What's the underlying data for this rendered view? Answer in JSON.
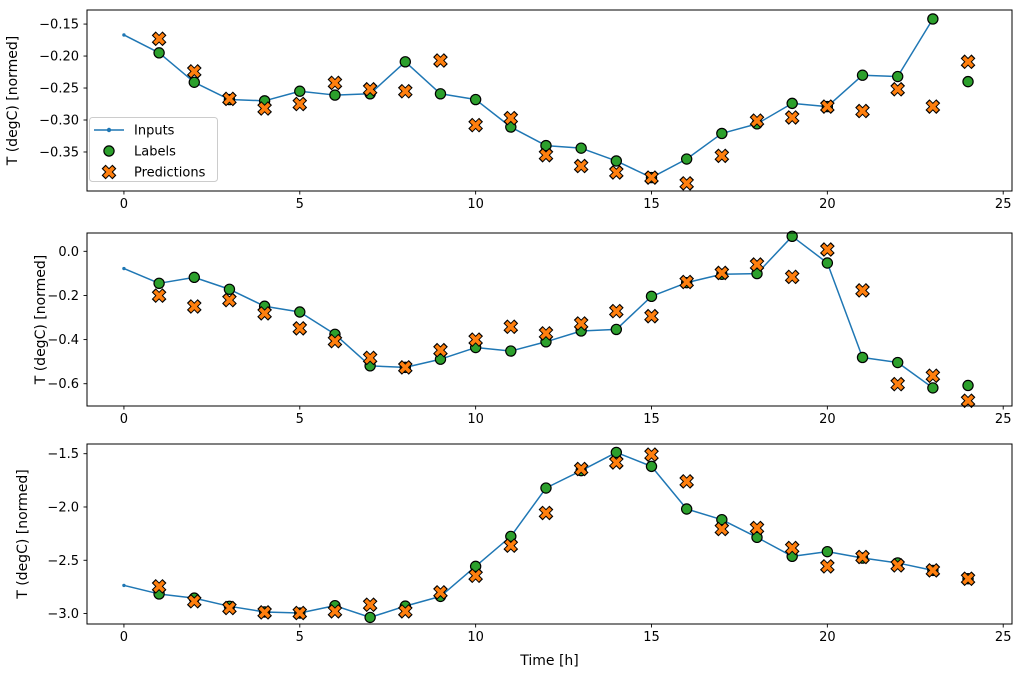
{
  "figure": {
    "xlabel": "Time [h]",
    "xlim": [
      -1.05,
      25.25
    ],
    "xticks": [
      0,
      5,
      10,
      15,
      20,
      25
    ],
    "xtick_labels": [
      "0",
      "5",
      "10",
      "15",
      "20",
      "25"
    ],
    "colors": {
      "inputs": "#1f77b4",
      "labels": "#2ca02c",
      "predictions": "#ff7f0e",
      "marker_edge": "#000000",
      "spine": "#000000",
      "background": "#ffffff",
      "legend_border": "#cccccc"
    },
    "legend": {
      "items": [
        {
          "label": "Inputs",
          "marker": "line-dot"
        },
        {
          "label": "Labels",
          "marker": "circle"
        },
        {
          "label": "Predictions",
          "marker": "X"
        }
      ]
    }
  },
  "chart_data": [
    {
      "type": "line+scatter",
      "ylabel": "T (degC) [normed]",
      "ylim": [
        -0.411,
        -0.128
      ],
      "yticks": [
        -0.15,
        -0.2,
        -0.25,
        -0.3,
        -0.35
      ],
      "ytick_labels": [
        "−0.15",
        "−0.20",
        "−0.25",
        "−0.30",
        "−0.35"
      ],
      "legend": true,
      "series": [
        {
          "name": "Inputs",
          "marker": "line-dot",
          "x": [
            0,
            1,
            2,
            3,
            4,
            5,
            6,
            7,
            8,
            9,
            10,
            11,
            12,
            13,
            14,
            15,
            16,
            17,
            18,
            19,
            20,
            21,
            22,
            23
          ],
          "y": [
            -0.167,
            -0.195,
            -0.241,
            -0.268,
            -0.27,
            -0.255,
            -0.261,
            -0.259,
            -0.209,
            -0.259,
            -0.268,
            -0.311,
            -0.34,
            -0.344,
            -0.364,
            -0.39,
            -0.361,
            -0.321,
            -0.306,
            -0.274,
            -0.279,
            -0.23,
            -0.232,
            -0.142
          ]
        },
        {
          "name": "Labels",
          "marker": "circle",
          "x": [
            1,
            2,
            3,
            4,
            5,
            6,
            7,
            8,
            9,
            10,
            11,
            12,
            13,
            14,
            15,
            16,
            17,
            18,
            19,
            20,
            21,
            22,
            23,
            24
          ],
          "y": [
            -0.195,
            -0.241,
            -0.268,
            -0.27,
            -0.255,
            -0.261,
            -0.259,
            -0.209,
            -0.259,
            -0.268,
            -0.311,
            -0.34,
            -0.344,
            -0.364,
            -0.39,
            -0.361,
            -0.321,
            -0.306,
            -0.274,
            -0.279,
            -0.23,
            -0.232,
            -0.142,
            -0.24
          ]
        },
        {
          "name": "Predictions",
          "marker": "X",
          "x": [
            1,
            2,
            3,
            4,
            5,
            6,
            7,
            8,
            9,
            10,
            11,
            12,
            13,
            14,
            15,
            16,
            17,
            18,
            19,
            20,
            21,
            22,
            23,
            24
          ],
          "y": [
            -0.173,
            -0.224,
            -0.267,
            -0.282,
            -0.275,
            -0.242,
            -0.252,
            -0.255,
            -0.207,
            -0.308,
            -0.297,
            -0.355,
            -0.372,
            -0.382,
            -0.39,
            -0.399,
            -0.356,
            -0.301,
            -0.296,
            -0.279,
            -0.286,
            -0.252,
            -0.279,
            -0.209
          ]
        }
      ]
    },
    {
      "type": "line+scatter",
      "ylabel": "T (degC) [normed]",
      "ylim": [
        -0.701,
        0.083
      ],
      "yticks": [
        0.0,
        -0.2,
        -0.4,
        -0.6
      ],
      "ytick_labels": [
        "0.0",
        "−0.2",
        "−0.4",
        "−0.6"
      ],
      "legend": false,
      "series": [
        {
          "name": "Inputs",
          "marker": "line-dot",
          "x": [
            0,
            1,
            2,
            3,
            4,
            5,
            6,
            7,
            8,
            9,
            10,
            11,
            12,
            13,
            14,
            15,
            16,
            17,
            18,
            19,
            20,
            21,
            22,
            23
          ],
          "y": [
            -0.078,
            -0.145,
            -0.118,
            -0.172,
            -0.249,
            -0.275,
            -0.376,
            -0.519,
            -0.526,
            -0.489,
            -0.436,
            -0.452,
            -0.41,
            -0.361,
            -0.354,
            -0.204,
            -0.142,
            -0.104,
            -0.101,
            0.068,
            -0.053,
            -0.481,
            -0.504,
            -0.619
          ]
        },
        {
          "name": "Labels",
          "marker": "circle",
          "x": [
            1,
            2,
            3,
            4,
            5,
            6,
            7,
            8,
            9,
            10,
            11,
            12,
            13,
            14,
            15,
            16,
            17,
            18,
            19,
            20,
            21,
            22,
            23,
            24
          ],
          "y": [
            -0.145,
            -0.118,
            -0.172,
            -0.249,
            -0.275,
            -0.376,
            -0.519,
            -0.526,
            -0.489,
            -0.436,
            -0.452,
            -0.41,
            -0.361,
            -0.354,
            -0.204,
            -0.142,
            -0.104,
            -0.101,
            0.068,
            -0.053,
            -0.481,
            -0.504,
            -0.619,
            -0.608
          ]
        },
        {
          "name": "Predictions",
          "marker": "X",
          "x": [
            1,
            2,
            3,
            4,
            5,
            6,
            7,
            8,
            9,
            10,
            11,
            12,
            13,
            14,
            15,
            16,
            17,
            18,
            19,
            20,
            21,
            22,
            23,
            24
          ],
          "y": [
            -0.201,
            -0.25,
            -0.221,
            -0.281,
            -0.349,
            -0.407,
            -0.483,
            -0.526,
            -0.448,
            -0.4,
            -0.342,
            -0.372,
            -0.327,
            -0.271,
            -0.294,
            -0.139,
            -0.098,
            -0.06,
            -0.116,
            0.008,
            -0.177,
            -0.602,
            -0.564,
            -0.677
          ]
        }
      ]
    },
    {
      "type": "line+scatter",
      "ylabel": "T (degC) [normed]",
      "ylim": [
        -3.098,
        -1.409
      ],
      "yticks": [
        -1.5,
        -2.0,
        -2.5,
        -3.0
      ],
      "ytick_labels": [
        "−1.5",
        "−2.0",
        "−2.5",
        "−3.0"
      ],
      "legend": false,
      "series": [
        {
          "name": "Inputs",
          "marker": "line-dot",
          "x": [
            0,
            1,
            2,
            3,
            4,
            5,
            6,
            7,
            8,
            9,
            10,
            11,
            12,
            13,
            14,
            15,
            16,
            17,
            18,
            19,
            20,
            21,
            22,
            23
          ],
          "y": [
            -2.736,
            -2.816,
            -2.855,
            -2.932,
            -2.985,
            -2.995,
            -2.926,
            -3.036,
            -2.93,
            -2.839,
            -2.557,
            -2.276,
            -1.822,
            -1.659,
            -1.488,
            -1.619,
            -2.019,
            -2.119,
            -2.285,
            -2.463,
            -2.419,
            -2.479,
            -2.525,
            -2.595
          ]
        },
        {
          "name": "Labels",
          "marker": "circle",
          "x": [
            1,
            2,
            3,
            4,
            5,
            6,
            7,
            8,
            9,
            10,
            11,
            12,
            13,
            14,
            15,
            16,
            17,
            18,
            19,
            20,
            21,
            22,
            23,
            24
          ],
          "y": [
            -2.816,
            -2.855,
            -2.932,
            -2.985,
            -2.995,
            -2.926,
            -3.036,
            -2.93,
            -2.839,
            -2.557,
            -2.276,
            -1.822,
            -1.659,
            -1.488,
            -1.619,
            -2.019,
            -2.119,
            -2.285,
            -2.463,
            -2.419,
            -2.479,
            -2.525,
            -2.595,
            -2.673
          ]
        },
        {
          "name": "Predictions",
          "marker": "X",
          "x": [
            1,
            2,
            3,
            4,
            5,
            6,
            7,
            8,
            9,
            10,
            11,
            12,
            13,
            14,
            15,
            16,
            17,
            18,
            19,
            20,
            21,
            22,
            23,
            24
          ],
          "y": [
            -2.745,
            -2.885,
            -2.948,
            -2.989,
            -2.995,
            -2.979,
            -2.917,
            -2.979,
            -2.801,
            -2.645,
            -2.363,
            -2.056,
            -1.644,
            -1.582,
            -1.509,
            -1.76,
            -2.207,
            -2.197,
            -2.385,
            -2.557,
            -2.469,
            -2.548,
            -2.595,
            -2.673
          ]
        }
      ]
    }
  ]
}
